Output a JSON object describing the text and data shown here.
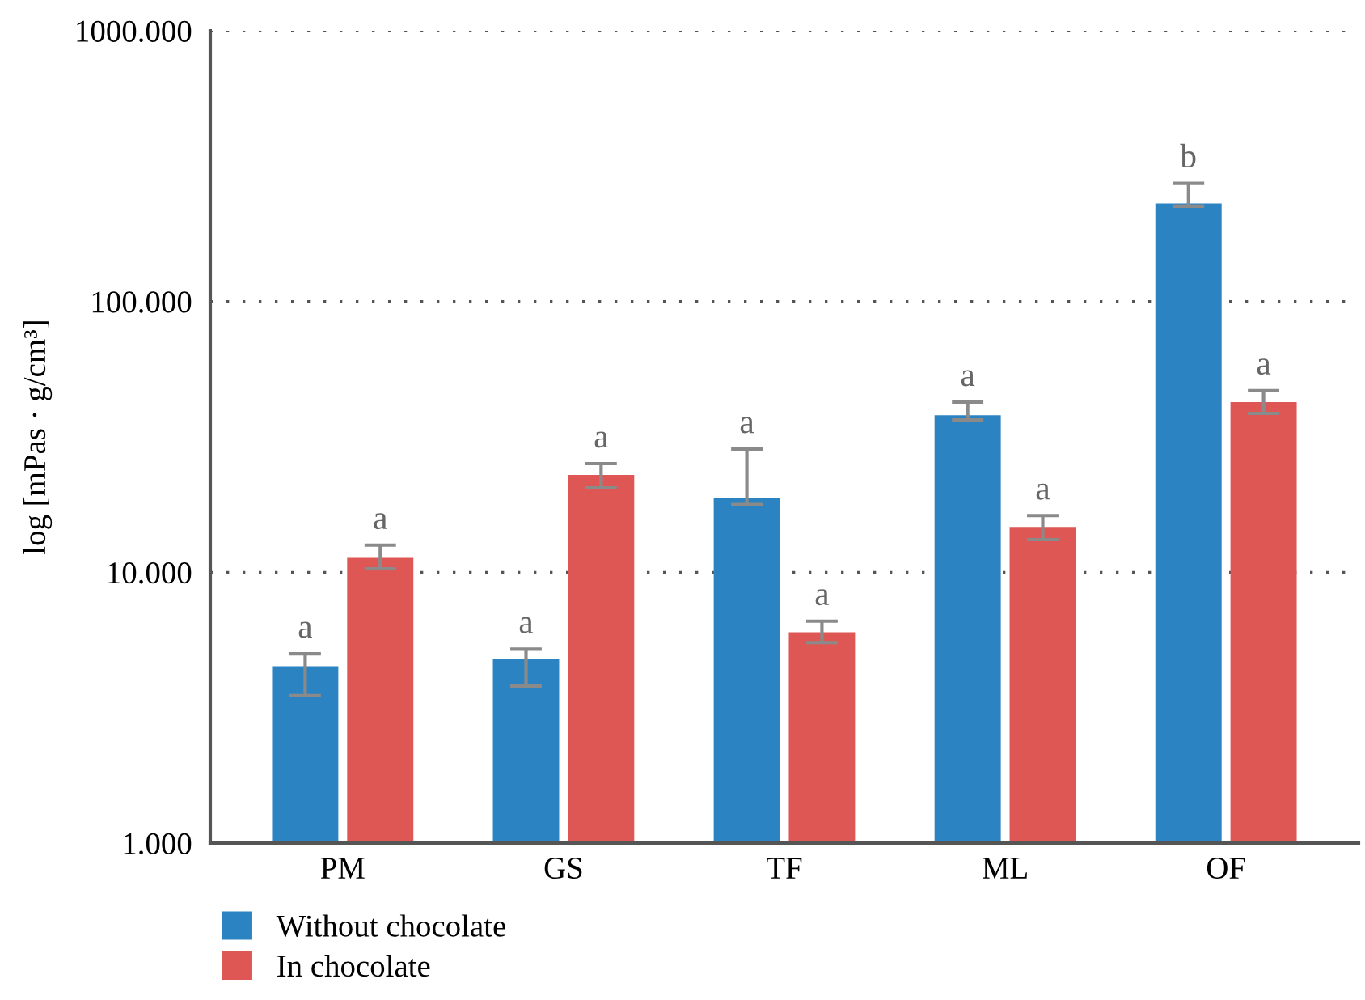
{
  "chart_data": {
    "type": "bar",
    "ylabel": "log [mPas · g/cm³]",
    "log": true,
    "categories": [
      "PM",
      "GS",
      "TF",
      "ML",
      "OF"
    ],
    "series": [
      {
        "name": "Without chocolate",
        "color": "#2b83c2",
        "values": [
          4.5,
          4.8,
          18.8,
          38,
          230
        ],
        "errors": [
          [
            3.5,
            5.0
          ],
          [
            3.8,
            5.2
          ],
          [
            17.8,
            28.5
          ],
          [
            36.5,
            42.5
          ],
          [
            225,
            273
          ]
        ],
        "value_labels": [
          "a",
          "a",
          "a",
          "a",
          "b"
        ]
      },
      {
        "name": "In chocolate",
        "color": "#df5755",
        "values": [
          11.3,
          22.9,
          6.0,
          14.7,
          42.5
        ],
        "errors": [
          [
            10.3,
            12.6
          ],
          [
            20.5,
            25.2
          ],
          [
            5.5,
            6.6
          ],
          [
            13.2,
            16.2
          ],
          [
            38.6,
            46.9
          ]
        ],
        "value_labels": [
          "a",
          "a",
          "a",
          "a",
          "a"
        ]
      }
    ],
    "ylim": [
      1,
      1000
    ],
    "yticks": [
      {
        "value": 1,
        "label": "1.000"
      },
      {
        "value": 10,
        "label": "10.000"
      },
      {
        "value": 100,
        "label": "100.000"
      },
      {
        "value": 1000,
        "label": "1000.000"
      }
    ],
    "grid": "y",
    "legend": "bottom left"
  }
}
